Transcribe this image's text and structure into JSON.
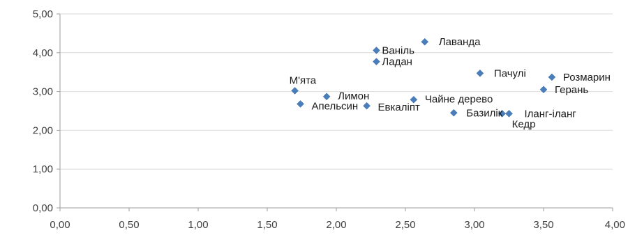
{
  "chart_data": {
    "type": "scatter",
    "title": "",
    "xlabel": "",
    "ylabel": "",
    "xlim": [
      0,
      4
    ],
    "ylim": [
      0,
      5
    ],
    "x_ticks": [
      "0,00",
      "0,50",
      "1,00",
      "1,50",
      "2,00",
      "2,50",
      "3,00",
      "3,50",
      "4,00"
    ],
    "y_ticks": [
      "0,00",
      "1,00",
      "2,00",
      "3,00",
      "4,00",
      "5,00"
    ],
    "grid": "horizontal",
    "legend": "none",
    "marker": "diamond",
    "marker_color": "#4a7ebb",
    "points": [
      {
        "label": "Лаванда",
        "x": 2.64,
        "y": 4.28
      },
      {
        "label": "Ваніль",
        "x": 2.29,
        "y": 4.06
      },
      {
        "label": "Ладан",
        "x": 2.29,
        "y": 3.77
      },
      {
        "label": "Пачулі",
        "x": 3.04,
        "y": 3.47
      },
      {
        "label": "Розмарин",
        "x": 3.56,
        "y": 3.37
      },
      {
        "label": "Герань",
        "x": 3.5,
        "y": 3.05
      },
      {
        "label": "М'ята",
        "x": 1.7,
        "y": 3.02
      },
      {
        "label": "Лимон",
        "x": 1.93,
        "y": 2.87
      },
      {
        "label": "Чайне дерево",
        "x": 2.56,
        "y": 2.79
      },
      {
        "label": "Апельсин",
        "x": 1.74,
        "y": 2.68
      },
      {
        "label": "Евкаліпт",
        "x": 2.22,
        "y": 2.63
      },
      {
        "label": "Базилік",
        "x": 2.85,
        "y": 2.45
      },
      {
        "label": "Кедр",
        "x": 3.2,
        "y": 2.43
      },
      {
        "label": "Іланг-іланг",
        "x": 3.25,
        "y": 2.43
      }
    ]
  }
}
